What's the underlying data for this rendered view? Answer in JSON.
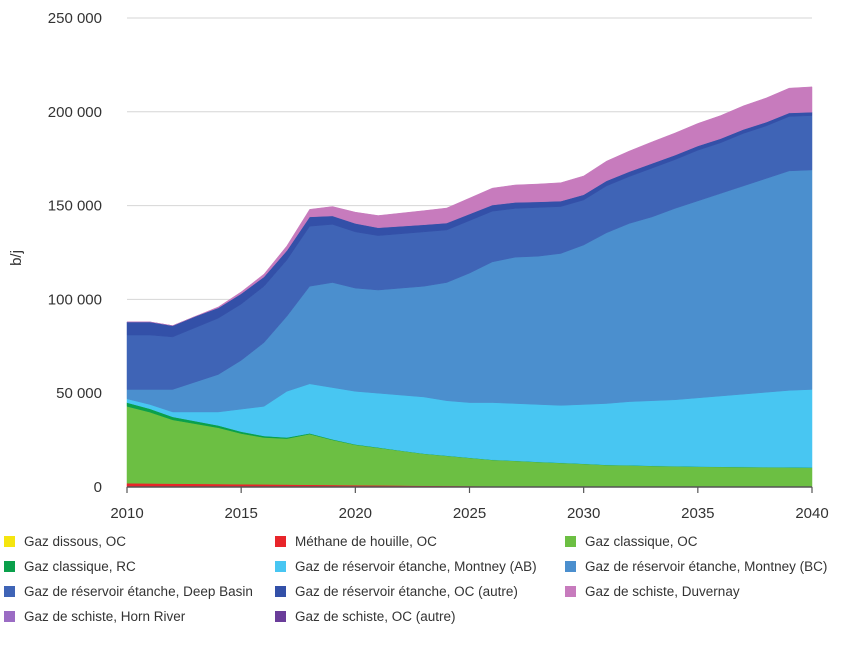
{
  "chart_data": {
    "type": "area",
    "stacked": true,
    "ylabel": "b/j",
    "xlabel": "",
    "ylim": [
      0,
      250000
    ],
    "yticks": [
      0,
      50000,
      100000,
      150000,
      200000,
      250000
    ],
    "ytick_labels": [
      "0",
      "50 000",
      "100 000",
      "150 000",
      "200 000",
      "250 000"
    ],
    "xlim": [
      2010,
      2040
    ],
    "xticks": [
      2010,
      2015,
      2020,
      2025,
      2030,
      2035,
      2040
    ],
    "xtick_labels": [
      "2010",
      "2015",
      "2020",
      "2025",
      "2030",
      "2035",
      "2040"
    ],
    "grid": true,
    "legend_position": "bottom",
    "x": [
      2010,
      2011,
      2012,
      2013,
      2014,
      2015,
      2016,
      2017,
      2018,
      2019,
      2020,
      2021,
      2022,
      2023,
      2024,
      2025,
      2026,
      2027,
      2028,
      2029,
      2030,
      2031,
      2032,
      2033,
      2034,
      2035,
      2036,
      2037,
      2038,
      2039,
      2040
    ],
    "series": [
      {
        "name": "Gaz dissous, OC",
        "color": "#f5e50f",
        "values": [
          0,
          0,
          0,
          0,
          0,
          0,
          0,
          0,
          0,
          0,
          0,
          0,
          0,
          0,
          0,
          0,
          0,
          0,
          0,
          0,
          0,
          0,
          0,
          0,
          0,
          0,
          0,
          0,
          0,
          0,
          0
        ]
      },
      {
        "name": "Méthane de houille, OC",
        "color": "#e8252a",
        "values": [
          2000,
          1900,
          1800,
          1700,
          1600,
          1500,
          1400,
          1300,
          1200,
          1100,
          1000,
          900,
          800,
          700,
          600,
          500,
          400,
          400,
          300,
          300,
          300,
          200,
          200,
          200,
          200,
          200,
          200,
          200,
          200,
          200,
          200
        ]
      },
      {
        "name": "Gaz classique, OC",
        "color": "#6cbf43",
        "values": [
          41000,
          38000,
          34000,
          32000,
          30000,
          27000,
          25000,
          24500,
          27000,
          24000,
          21500,
          20000,
          18500,
          17000,
          16000,
          15000,
          14000,
          13500,
          13000,
          12500,
          12000,
          11500,
          11300,
          11000,
          10800,
          10600,
          10500,
          10400,
          10300,
          10200,
          10100
        ]
      },
      {
        "name": "Gaz classique, RC",
        "color": "#0aa04b",
        "values": [
          2000,
          1800,
          1600,
          1400,
          1200,
          1000,
          800,
          600,
          400,
          300,
          200,
          200,
          100,
          100,
          100,
          100,
          100,
          100,
          100,
          100,
          100,
          100,
          100,
          100,
          100,
          100,
          100,
          100,
          100,
          100,
          100
        ]
      },
      {
        "name": "Gaz de réservoir étanche, Montney (AB)",
        "color": "#48c6f2",
        "values": [
          2000,
          2300,
          2600,
          4900,
          7200,
          12000,
          15800,
          24600,
          26400,
          27600,
          28300,
          28900,
          29600,
          30200,
          29300,
          29400,
          30500,
          30500,
          30600,
          30600,
          31600,
          32700,
          33900,
          34700,
          35400,
          36600,
          37700,
          38800,
          39900,
          41000,
          41600
        ]
      },
      {
        "name": "Gaz de réservoir étanche, Montney (BC)",
        "color": "#4b8fce",
        "values": [
          5000,
          8000,
          12000,
          16000,
          20000,
          26000,
          34000,
          40000,
          52000,
          56000,
          55000,
          55000,
          57000,
          59000,
          63000,
          69000,
          75000,
          78000,
          79000,
          81000,
          85000,
          91000,
          95000,
          98000,
          102000,
          105000,
          108000,
          111000,
          114000,
          117000,
          117000
        ]
      },
      {
        "name": "Gaz de réservoir étanche, Deep Basin",
        "color": "#3f64b6",
        "values": [
          29000,
          29000,
          28000,
          29000,
          30000,
          30000,
          30000,
          30000,
          32000,
          31000,
          30000,
          29000,
          29000,
          29000,
          28000,
          28000,
          27000,
          26000,
          26000,
          25000,
          24000,
          25000,
          25000,
          26000,
          26000,
          27000,
          27000,
          28000,
          28000,
          29000,
          29000
        ]
      },
      {
        "name": "Gaz de réservoir étanche, OC (autre)",
        "color": "#3350a8",
        "values": [
          7000,
          7000,
          6000,
          6000,
          5500,
          5500,
          5000,
          5000,
          5000,
          4500,
          4500,
          4200,
          4000,
          3800,
          3700,
          3500,
          3300,
          3200,
          3000,
          2900,
          2800,
          2700,
          2600,
          2500,
          2400,
          2300,
          2200,
          2100,
          2000,
          1900,
          1800
        ]
      },
      {
        "name": "Gaz de schiste, Duvernay",
        "color": "#c77bbd",
        "values": [
          0,
          0,
          0,
          0,
          500,
          1000,
          1500,
          2500,
          4000,
          5000,
          6000,
          6500,
          7000,
          7500,
          8000,
          8500,
          9000,
          9300,
          9500,
          9800,
          10000,
          10500,
          11000,
          11500,
          11800,
          12000,
          12300,
          12600,
          12900,
          13200,
          13500
        ]
      },
      {
        "name": "Gaz de schiste, Horn River",
        "color": "#9b6cc4",
        "values": [
          0,
          0,
          0,
          0,
          0,
          0,
          0,
          0,
          0,
          0,
          0,
          0,
          0,
          0,
          0,
          0,
          0,
          0,
          0,
          0,
          0,
          0,
          0,
          0,
          0,
          0,
          0,
          0,
          0,
          0,
          0
        ]
      },
      {
        "name": "Gaz de schiste, OC (autre)",
        "color": "#6a3d9a",
        "values": [
          0,
          0,
          0,
          0,
          0,
          0,
          0,
          0,
          0,
          0,
          0,
          0,
          0,
          0,
          0,
          0,
          0,
          0,
          0,
          0,
          0,
          0,
          0,
          0,
          0,
          0,
          0,
          0,
          0,
          0,
          0
        ]
      }
    ]
  }
}
